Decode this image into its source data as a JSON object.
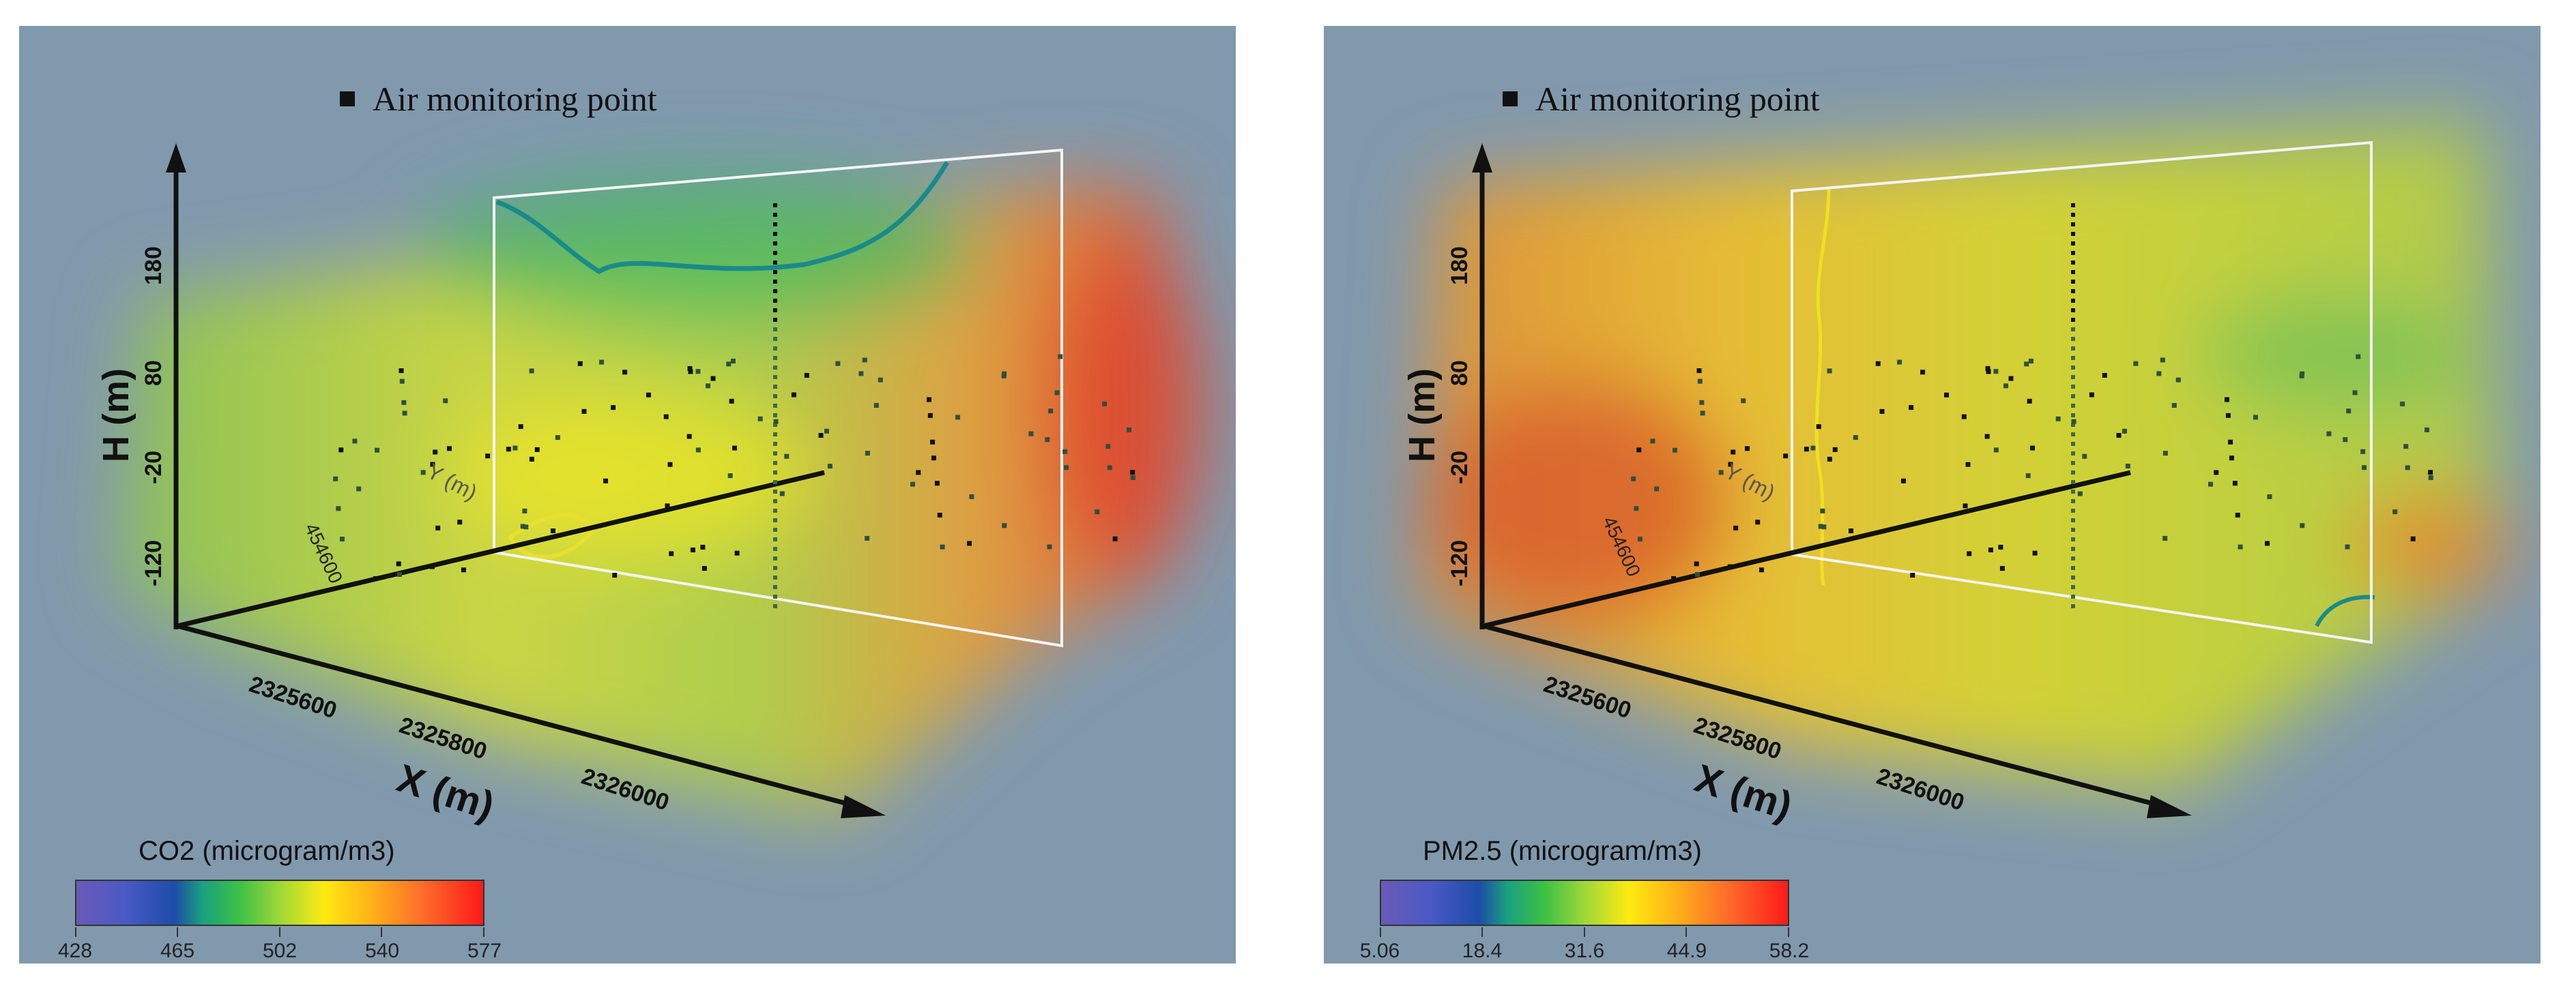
{
  "chart_data": [
    {
      "type": "3d-volume-heatmap",
      "legend_marker_label": "Air monitoring point",
      "axes": {
        "x": {
          "label": "X (m)",
          "ticks": [
            "2325600",
            "2325800",
            "2326000"
          ]
        },
        "y": {
          "label": "Y (m)",
          "ticks": [
            "454600"
          ]
        },
        "h": {
          "label": "H (m)",
          "ticks": [
            "-120",
            "-20",
            "80",
            "180"
          ]
        }
      },
      "colorbar": {
        "title": "CO2 (microgram/m3)",
        "ticks": [
          "428",
          "465",
          "502",
          "540",
          "577"
        ],
        "range": [
          428,
          577
        ]
      },
      "colors": {
        "background": "#8199ad",
        "contour": "#1a8a8a"
      }
    },
    {
      "type": "3d-volume-heatmap",
      "legend_marker_label": "Air monitoring point",
      "axes": {
        "x": {
          "label": "X (m)",
          "ticks": [
            "2325600",
            "2325800",
            "2326000"
          ]
        },
        "y": {
          "label": "Y (m)",
          "ticks": [
            "454600"
          ]
        },
        "h": {
          "label": "H (m)",
          "ticks": [
            "-120",
            "-20",
            "80",
            "180"
          ]
        }
      },
      "colorbar": {
        "title": "PM2.5 (microgram/m3)",
        "ticks": [
          "5.06",
          "18.4",
          "31.6",
          "44.9",
          "58.2"
        ],
        "range": [
          5.06,
          58.2
        ]
      },
      "colors": {
        "background": "#8199ad",
        "contour": "#1a8a8a"
      }
    }
  ]
}
